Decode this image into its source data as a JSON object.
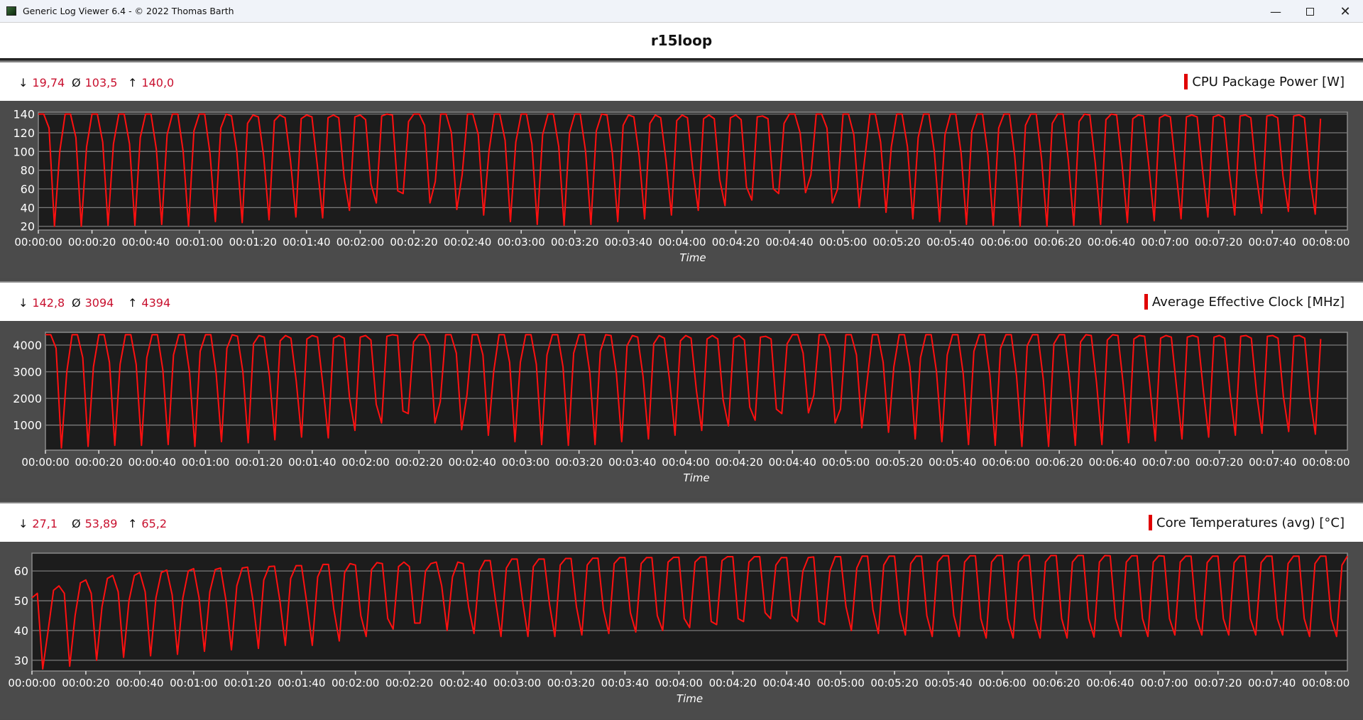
{
  "window": {
    "title": "Generic Log Viewer 6.4 - © 2022 Thomas Barth",
    "minimize_icon": "minimize-icon",
    "maximize_icon": "maximize-icon",
    "close_icon": "close-icon"
  },
  "header": {
    "title": "r15loop"
  },
  "colors": {
    "line": "#ff1010",
    "stat_value": "#c8102e",
    "plot_bg": "#1c1c1c",
    "panel_bg": "#4b4b4b",
    "grid": "#7a7a7a"
  },
  "panels": [
    {
      "stats": {
        "min_symbol": "↓",
        "min": "19,74",
        "avg_symbol": "Ø",
        "avg": "103,5",
        "max_symbol": "↑",
        "max": "140,0"
      },
      "legend": "CPU Package Power [W]"
    },
    {
      "stats": {
        "min_symbol": "↓",
        "min": "142,8",
        "avg_symbol": "Ø",
        "avg": "3094",
        "max_symbol": "↑",
        "max": "4394"
      },
      "legend": "Average Effective Clock [MHz]"
    },
    {
      "stats": {
        "min_symbol": "↓",
        "min": "27,1",
        "avg_symbol": "Ø",
        "avg": "53,89",
        "max_symbol": "↑",
        "max": "65,2"
      },
      "legend": "Core Temperatures (avg) [°C]"
    }
  ],
  "chart_data": [
    {
      "type": "line",
      "xlabel": "Time",
      "ylabel": "",
      "x_unit": "seconds",
      "x_start": 0,
      "x_step": 2,
      "xlim": [
        0,
        488
      ],
      "ylim": [
        16,
        142
      ],
      "grid": true,
      "legend": "top-right",
      "xticks": [
        "00:00:00",
        "00:00:20",
        "00:00:40",
        "00:01:00",
        "00:01:20",
        "00:01:40",
        "00:02:00",
        "00:02:20",
        "00:02:40",
        "00:03:00",
        "00:03:20",
        "00:03:40",
        "00:04:00",
        "00:04:20",
        "00:04:40",
        "00:05:00",
        "00:05:20",
        "00:05:40",
        "00:06:00",
        "00:06:20",
        "00:06:40",
        "00:07:00",
        "00:07:20",
        "00:07:40",
        "00:08:00"
      ],
      "yticks": [
        20,
        40,
        60,
        80,
        100,
        120,
        140
      ],
      "series": [
        {
          "name": "CPU Package Power [W]",
          "values": [
            140,
            140,
            125,
            20,
            100,
            140,
            140,
            115,
            20,
            105,
            140,
            140,
            110,
            21,
            108,
            140,
            140,
            108,
            21,
            115,
            140,
            140,
            102,
            22,
            118,
            140,
            140,
            100,
            20,
            122,
            140,
            140,
            98,
            25,
            125,
            140,
            138,
            100,
            24,
            130,
            139,
            137,
            95,
            27,
            133,
            139,
            136,
            90,
            30,
            135,
            139,
            137,
            85,
            29,
            136,
            139,
            136,
            72,
            37,
            137,
            139,
            134,
            65,
            45,
            138,
            140,
            139,
            58,
            55,
            132,
            140,
            140,
            128,
            45,
            68,
            140,
            140,
            120,
            38,
            75,
            140,
            140,
            118,
            32,
            100,
            140,
            140,
            112,
            25,
            110,
            140,
            140,
            108,
            22,
            118,
            140,
            140,
            105,
            21,
            120,
            140,
            140,
            100,
            22,
            122,
            140,
            139,
            98,
            25,
            128,
            139,
            137,
            95,
            28,
            130,
            139,
            136,
            90,
            32,
            133,
            139,
            136,
            80,
            37,
            135,
            139,
            135,
            70,
            42,
            136,
            139,
            134,
            62,
            48,
            137,
            138,
            135,
            60,
            55,
            130,
            140,
            140,
            120,
            56,
            75,
            140,
            140,
            125,
            45,
            60,
            140,
            140,
            118,
            40,
            90,
            140,
            140,
            110,
            35,
            105,
            140,
            140,
            105,
            28,
            115,
            140,
            140,
            100,
            25,
            118,
            140,
            140,
            98,
            22,
            122,
            140,
            140,
            96,
            21,
            125,
            140,
            140,
            95,
            20,
            128,
            140,
            140,
            92,
            20,
            130,
            140,
            140,
            90,
            21,
            132,
            140,
            139,
            88,
            22,
            134,
            140,
            139,
            86,
            24,
            135,
            139,
            138,
            84,
            26,
            136,
            139,
            137,
            82,
            28,
            137,
            139,
            137,
            80,
            30,
            137,
            139,
            136,
            78,
            32,
            138,
            139,
            136,
            76,
            34,
            138,
            139,
            136,
            74,
            36,
            138,
            139,
            136,
            72,
            33,
            135
          ]
        }
      ]
    },
    {
      "type": "line",
      "xlabel": "Time",
      "ylabel": "",
      "x_unit": "seconds",
      "x_start": 0,
      "x_step": 2,
      "xlim": [
        0,
        488
      ],
      "ylim": [
        60,
        4480
      ],
      "grid": true,
      "legend": "top-right",
      "xticks": [
        "00:00:00",
        "00:00:20",
        "00:00:40",
        "00:01:00",
        "00:01:20",
        "00:01:40",
        "00:02:00",
        "00:02:20",
        "00:02:40",
        "00:03:00",
        "00:03:20",
        "00:03:40",
        "00:04:00",
        "00:04:20",
        "00:04:40",
        "00:05:00",
        "00:05:20",
        "00:05:40",
        "00:06:00",
        "00:06:20",
        "00:06:40",
        "00:07:00",
        "00:07:20",
        "00:07:40",
        "00:08:00"
      ],
      "yticks": [
        1000,
        2000,
        3000,
        4000
      ],
      "series": [
        {
          "name": "Average Effective Clock [MHz]",
          "values": [
            4394,
            4390,
            3880,
            143,
            3000,
            4390,
            4390,
            3530,
            200,
            3180,
            4390,
            4390,
            3350,
            240,
            3280,
            4390,
            4390,
            3280,
            240,
            3530,
            4390,
            4390,
            3070,
            270,
            3630,
            4390,
            4390,
            3000,
            200,
            3770,
            4390,
            4390,
            2930,
            380,
            3880,
            4390,
            4330,
            3000,
            340,
            4050,
            4360,
            4300,
            2830,
            450,
            4160,
            4360,
            4260,
            2650,
            550,
            4230,
            4360,
            4300,
            2480,
            520,
            4260,
            4360,
            4260,
            2020,
            800,
            4300,
            4360,
            4190,
            1780,
            1080,
            4330,
            4390,
            4360,
            1530,
            1430,
            4120,
            4390,
            4390,
            3980,
            1080,
            1880,
            4390,
            4390,
            3700,
            830,
            2130,
            4390,
            4390,
            3630,
            620,
            3000,
            4390,
            4390,
            3350,
            380,
            3350,
            4390,
            4390,
            3280,
            270,
            3630,
            4390,
            4390,
            3180,
            240,
            3700,
            4390,
            4390,
            3000,
            270,
            3770,
            4390,
            4360,
            2930,
            380,
            3980,
            4360,
            4300,
            2830,
            480,
            4050,
            4360,
            4260,
            2650,
            620,
            4160,
            4360,
            4260,
            2300,
            800,
            4230,
            4360,
            4230,
            1950,
            970,
            4260,
            4360,
            4190,
            1670,
            1180,
            4300,
            4330,
            4230,
            1600,
            1430,
            4050,
            4390,
            4390,
            3700,
            1460,
            2130,
            4390,
            4390,
            3880,
            1080,
            1600,
            4390,
            4390,
            3630,
            900,
            2650,
            4390,
            4390,
            3350,
            730,
            3180,
            4390,
            4390,
            3180,
            480,
            3530,
            4390,
            4390,
            3000,
            380,
            3630,
            4390,
            4390,
            2930,
            270,
            3770,
            4390,
            4390,
            2860,
            240,
            3880,
            4390,
            4390,
            2830,
            200,
            3980,
            4390,
            4390,
            2720,
            200,
            4050,
            4390,
            4390,
            2650,
            240,
            4120,
            4390,
            4360,
            2580,
            270,
            4190,
            4390,
            4360,
            2510,
            340,
            4230,
            4360,
            4330,
            2440,
            410,
            4260,
            4360,
            4300,
            2370,
            480,
            4300,
            4360,
            4300,
            2300,
            550,
            4300,
            4360,
            4260,
            2230,
            620,
            4330,
            4360,
            4260,
            2160,
            690,
            4330,
            4360,
            4260,
            2090,
            760,
            4330,
            4360,
            4260,
            2020,
            660,
            4230
          ]
        }
      ]
    },
    {
      "type": "line",
      "xlabel": "Time",
      "ylabel": "",
      "x_unit": "seconds",
      "x_start": 0,
      "x_step": 2,
      "xlim": [
        0,
        488
      ],
      "ylim": [
        26.4,
        66
      ],
      "grid": true,
      "legend": "top-right",
      "xticks": [
        "00:00:00",
        "00:00:20",
        "00:00:40",
        "00:01:00",
        "00:01:20",
        "00:01:40",
        "00:02:00",
        "00:02:20",
        "00:02:40",
        "00:03:00",
        "00:03:20",
        "00:03:40",
        "00:04:00",
        "00:04:20",
        "00:04:40",
        "00:05:00",
        "00:05:20",
        "00:05:40",
        "00:06:00",
        "00:06:20",
        "00:06:40",
        "00:07:00",
        "00:07:20",
        "00:07:40",
        "00:08:00"
      ],
      "yticks": [
        30,
        40,
        50,
        60
      ],
      "series": [
        {
          "name": "Core Temperatures (avg) [°C]",
          "values": [
            51,
            52.5,
            27.1,
            40,
            53.5,
            55,
            52.5,
            28,
            45,
            56,
            57,
            52.5,
            30,
            48,
            57.5,
            58.5,
            53,
            31,
            50,
            58.5,
            59.5,
            53,
            31.5,
            51,
            59.5,
            60.3,
            52,
            32,
            51,
            60,
            60.8,
            51,
            33,
            53,
            60.5,
            61,
            50,
            33.5,
            55,
            61,
            61.3,
            50,
            34,
            57,
            61.5,
            61.6,
            50,
            35,
            57.5,
            61.8,
            61.8,
            49,
            35,
            58,
            62.2,
            62.2,
            47,
            36.5,
            59.5,
            62.5,
            62,
            45,
            38,
            60.5,
            62.8,
            62.5,
            44,
            40.5,
            61.5,
            63,
            61.5,
            42.5,
            42.5,
            60,
            62.5,
            63,
            55,
            40,
            58,
            63,
            62.5,
            48,
            39,
            60,
            63.5,
            63.5,
            50,
            38,
            61,
            64,
            64,
            50,
            38,
            61.5,
            64,
            64,
            49,
            38,
            62,
            64.2,
            64.2,
            48,
            38.5,
            62,
            64.3,
            64.3,
            47,
            39,
            62.5,
            64.5,
            64.5,
            46,
            39.5,
            62.5,
            64.5,
            64.5,
            45,
            40,
            63,
            64.6,
            64.6,
            44,
            41,
            63,
            64.7,
            64.7,
            43,
            42,
            63.5,
            64.8,
            64.8,
            44,
            43,
            63,
            64.8,
            64.8,
            46,
            44,
            62,
            64.5,
            64.5,
            45,
            43,
            60,
            64.5,
            64.7,
            43,
            42,
            60,
            64.8,
            64.8,
            48,
            40,
            61,
            65,
            65,
            47,
            39,
            62,
            65,
            65,
            46,
            38.5,
            62.5,
            65,
            65,
            45,
            38,
            63,
            65.1,
            65.1,
            45,
            38,
            63,
            65.1,
            65.1,
            44,
            37.5,
            63,
            65.2,
            65.2,
            44,
            37.5,
            63,
            65.2,
            65.2,
            44,
            37.5,
            63,
            65.2,
            65.2,
            44,
            37.5,
            63,
            65.2,
            65.2,
            44,
            37.8,
            63,
            65.2,
            65.1,
            44,
            38,
            63,
            65.1,
            65.1,
            44,
            38,
            63,
            65.1,
            65,
            44,
            38.5,
            63,
            65,
            65,
            44,
            38.5,
            62.8,
            65,
            65,
            44,
            38.5,
            62.8,
            65,
            65,
            44,
            38.5,
            62.8,
            65,
            65,
            44,
            38.5,
            62.5,
            65,
            65,
            44,
            38,
            62.5,
            65,
            65,
            44,
            38,
            62,
            65
          ]
        }
      ]
    }
  ]
}
